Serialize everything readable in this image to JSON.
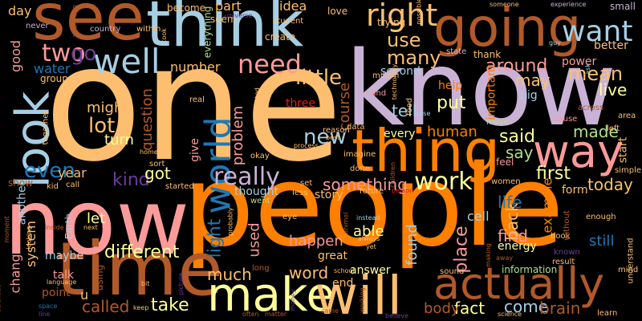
{
  "words": [
    {
      "text": "one",
      "color": "#fdbf6f"
    },
    {
      "text": "know",
      "color": "#cab2d6"
    },
    {
      "text": "people",
      "color": "#ff7f00"
    },
    {
      "text": "now",
      "color": "#fb9a99"
    },
    {
      "text": "see",
      "color": "#b15928"
    },
    {
      "text": "think",
      "color": "#a6cee3"
    },
    {
      "text": "going",
      "color": "#b15928"
    },
    {
      "text": "thing",
      "color": "#ff7f00"
    },
    {
      "text": "time",
      "color": "#b15928"
    },
    {
      "text": "way",
      "color": "#fb9a99"
    },
    {
      "text": "make",
      "color": "#ffff99"
    },
    {
      "text": "will",
      "color": "#fdbf6f"
    },
    {
      "text": "actually",
      "color": "#b15928"
    },
    {
      "text": "look",
      "color": "#a6cee3"
    },
    {
      "text": "want",
      "color": "#a6cee3"
    },
    {
      "text": "well",
      "color": "#a6cee3"
    },
    {
      "text": "right",
      "color": "#fdbf6f"
    },
    {
      "text": "world",
      "color": "#1f78b4"
    },
    {
      "text": "need",
      "color": "#fb9a99"
    },
    {
      "text": "really",
      "color": "#cab2d6"
    },
    {
      "text": "work",
      "color": "#ffff99"
    },
    {
      "text": "two",
      "color": "#fb9a99"
    },
    {
      "text": "go",
      "color": "#6a3d9a"
    },
    {
      "text": "new",
      "color": "#a6cee3"
    },
    {
      "text": "little",
      "color": "#fdbf6f"
    },
    {
      "text": "lot",
      "color": "#fdbf6f"
    },
    {
      "text": "many",
      "color": "#fdbf6f"
    },
    {
      "text": "use",
      "color": "#fdbf6f"
    },
    {
      "text": "mean",
      "color": "#fdbf6f"
    },
    {
      "text": "live",
      "color": "#ffff99"
    },
    {
      "text": "around",
      "color": "#fb9a99"
    },
    {
      "text": "tell",
      "color": "#a6cee3"
    },
    {
      "text": "put",
      "color": "#ffff99"
    },
    {
      "text": "may",
      "color": "#fdbf6f"
    },
    {
      "text": "said",
      "color": "#ffff99"
    },
    {
      "text": "made",
      "color": "#b2df8a"
    },
    {
      "text": "say",
      "color": "#b2df8a"
    },
    {
      "text": "first",
      "color": "#ffff99"
    },
    {
      "text": "today",
      "color": "#fdbf6f"
    },
    {
      "text": "back",
      "color": "#fdbf6f"
    },
    {
      "text": "life",
      "color": "#1f78b4"
    },
    {
      "text": "find",
      "color": "#fb9a99"
    },
    {
      "text": "still",
      "color": "#1f78b4"
    },
    {
      "text": "even",
      "color": "#1f78b4"
    },
    {
      "text": "kind",
      "color": "#6a3d9a"
    },
    {
      "text": "got",
      "color": "#ffff99"
    },
    {
      "text": "something",
      "color": "#fb9a99"
    },
    {
      "text": "different",
      "color": "#ffff99"
    },
    {
      "text": "much",
      "color": "#fdbf6f"
    },
    {
      "text": "word",
      "color": "#fdbf6f"
    },
    {
      "text": "take",
      "color": "#ffff99"
    },
    {
      "text": "called",
      "color": "#b15928"
    },
    {
      "text": "come",
      "color": "#a6cee3"
    },
    {
      "text": "brain",
      "color": "#b15928"
    },
    {
      "text": "fact",
      "color": "#ffff99"
    },
    {
      "text": "body",
      "color": "#b15928"
    },
    {
      "text": "able",
      "color": "#ffff99"
    },
    {
      "text": "place",
      "color": "#fb9a99"
    },
    {
      "text": "found",
      "color": "#a6cee3"
    },
    {
      "text": "happen",
      "color": "#fb9a99"
    },
    {
      "text": "used",
      "color": "#fb9a99"
    },
    {
      "text": "light",
      "color": "#1f78b4"
    },
    {
      "text": "let",
      "color": "#ffff99"
    },
    {
      "text": "might",
      "color": "#fdbf6f"
    },
    {
      "text": "turn",
      "color": "#ffff99"
    },
    {
      "text": "question",
      "color": "#b15928"
    },
    {
      "text": "problem",
      "color": "#fb9a99"
    },
    {
      "text": "course",
      "color": "#b15928"
    },
    {
      "text": "human",
      "color": "#ff7f00"
    },
    {
      "text": "part",
      "color": "#fdbf6f"
    },
    {
      "text": "idea",
      "color": "#fdbf6f"
    },
    {
      "text": "number",
      "color": "#fdbf6f"
    },
    {
      "text": "water",
      "color": "#1f78b4"
    },
    {
      "text": "good",
      "color": "#fb9a99"
    },
    {
      "text": "day",
      "color": "#fdbf6f"
    },
    {
      "text": "year",
      "color": "#fdbf6f"
    },
    {
      "text": "system",
      "color": "#fdbf6f"
    },
    {
      "text": "change",
      "color": "#fb9a99"
    },
    {
      "text": "maybe",
      "color": "#a6cee3"
    },
    {
      "text": "example",
      "color": "#ff7f00"
    },
    {
      "text": "cell",
      "color": "#a6cee3"
    },
    {
      "text": "energy",
      "color": "#ffff99"
    },
    {
      "text": "answer",
      "color": "#ffff99"
    },
    {
      "text": "story",
      "color": "#fdbf6f"
    },
    {
      "text": "thought",
      "color": "#a6cee3"
    },
    {
      "text": "form",
      "color": "#fdbf6f"
    },
    {
      "text": "start",
      "color": "#fdbf6f"
    },
    {
      "text": "help",
      "color": "#ff7f00"
    },
    {
      "text": "important",
      "color": "#ff7f00"
    },
    {
      "text": "big",
      "color": "#a6cee3"
    },
    {
      "text": "second",
      "color": "#a6cee3"
    },
    {
      "text": "power",
      "color": "#fb9a99"
    },
    {
      "text": "better",
      "color": "#fdbf6f"
    },
    {
      "text": "another",
      "color": "#a6cee3"
    },
    {
      "text": "give",
      "color": "#fb9a99"
    },
    {
      "text": "three",
      "color": "#e31a1c"
    },
    {
      "text": "every",
      "color": "#ffff99"
    },
    {
      "text": "u",
      "color": "#fdbf6f"
    },
    {
      "text": "point",
      "color": "#b15928"
    },
    {
      "text": "talk",
      "color": "#fb9a99"
    },
    {
      "text": "great",
      "color": "#fdbf6f"
    },
    {
      "text": "information",
      "color": "#b2df8a"
    },
    {
      "text": "end",
      "color": "#fdbf6f"
    },
    {
      "text": "using",
      "color": "#b15928"
    },
    {
      "text": "Earth",
      "color": "#a6cee3"
    },
    {
      "text": "show",
      "color": "#b15928"
    },
    {
      "text": "become",
      "color": "#fdbf6f"
    },
    {
      "text": "everything",
      "color": "#b2df8a"
    },
    {
      "text": "create",
      "color": "#fdbf6f"
    },
    {
      "text": "love",
      "color": "#fdbf6f"
    },
    {
      "text": "trying",
      "color": "#fdbf6f"
    },
    {
      "text": "thank",
      "color": "#fdbf6f"
    },
    {
      "text": "small",
      "color": "#cab2d6"
    },
    {
      "text": "state",
      "color": "#cab2d6"
    },
    {
      "text": "seem",
      "color": "#fdbf6f"
    },
    {
      "text": "within",
      "color": "#fdbf6f"
    },
    {
      "text": "country",
      "color": "#cab2d6"
    },
    {
      "text": "never",
      "color": "#cab2d6"
    },
    {
      "text": "together",
      "color": "#fdbf6f"
    },
    {
      "text": "group",
      "color": "#fdbf6f"
    },
    {
      "text": "student",
      "color": "#fdbf6f"
    },
    {
      "text": "universe",
      "color": "#6a3d9a"
    },
    {
      "text": "experience",
      "color": "#cab2d6"
    },
    {
      "text": "someone",
      "color": "#fdbf6f"
    },
    {
      "text": "guy",
      "color": "#a6cee3"
    },
    {
      "text": "ask",
      "color": "#a6cee3"
    },
    {
      "text": "across",
      "color": "#b15928"
    },
    {
      "text": "area",
      "color": "#fdbf6f"
    },
    {
      "text": "cause",
      "color": "#fb9a99"
    },
    {
      "text": "left",
      "color": "#fdbf6f"
    },
    {
      "text": "simple",
      "color": "#fdbf6f"
    },
    {
      "text": "hand",
      "color": "#fb9a99"
    },
    {
      "text": "million",
      "color": "#fdbf6f"
    },
    {
      "text": "food",
      "color": "#fdbf6f"
    },
    {
      "text": "move",
      "color": "#b2df8a"
    },
    {
      "text": "reason",
      "color": "#fdbf6f"
    },
    {
      "text": "data",
      "color": "#fdbf6f"
    },
    {
      "text": "okay",
      "color": "#fdbf6f"
    },
    {
      "text": "home",
      "color": "#fdbf6f"
    },
    {
      "text": "sort",
      "color": "#fdbf6f"
    },
    {
      "text": "started",
      "color": "#fdbf6f"
    },
    {
      "text": "call",
      "color": "#fdbf6f"
    },
    {
      "text": "kid",
      "color": "#fdbf6f"
    },
    {
      "text": "set",
      "color": "#fdbf6f"
    },
    {
      "text": "less",
      "color": "#fdbf6f"
    },
    {
      "text": "went",
      "color": "#b2df8a"
    },
    {
      "text": "future",
      "color": "#fdbf6f"
    },
    {
      "text": "person",
      "color": "#e31a1c"
    },
    {
      "text": "imagine",
      "color": "#fdbf6f"
    },
    {
      "text": "done",
      "color": "#fdbf6f"
    },
    {
      "text": "children",
      "color": "#b15928"
    },
    {
      "text": "feel",
      "color": "#fb9a99"
    },
    {
      "text": "women",
      "color": "#fdbf6f"
    },
    {
      "text": "book",
      "color": "#fdbf6f"
    },
    {
      "text": "without",
      "color": "#b15928"
    },
    {
      "text": "enough",
      "color": "#fdbf6f"
    },
    {
      "text": "known",
      "color": "#6a3d9a"
    },
    {
      "text": "result",
      "color": "#fdbf6f"
    },
    {
      "text": "understand",
      "color": "#fdbf6f"
    },
    {
      "text": "mind",
      "color": "#fdbf6f"
    },
    {
      "text": "learn",
      "color": "#fdbf6f"
    },
    {
      "text": "science",
      "color": "#fdbf6f"
    },
    {
      "text": "away",
      "color": "#b15928"
    },
    {
      "text": "came",
      "color": "#b15928"
    },
    {
      "text": "believe",
      "color": "#6a3d9a"
    },
    {
      "text": "sound",
      "color": "#fdbf6f"
    },
    {
      "text": "making",
      "color": "#b15928"
    },
    {
      "text": "always",
      "color": "#fdbf6f"
    },
    {
      "text": "yet",
      "color": "#fdbf6f"
    },
    {
      "text": "instead",
      "color": "#a6cee3"
    },
    {
      "text": "animal",
      "color": "#b15928"
    },
    {
      "text": "eye",
      "color": "#fdbf6f"
    },
    {
      "text": "school",
      "color": "#fdbf6f"
    },
    {
      "text": "working",
      "color": "#b15928"
    },
    {
      "text": "often",
      "color": "#b15928"
    },
    {
      "text": "matter",
      "color": "#b15928"
    },
    {
      "text": "money",
      "color": "#6a3d9a"
    },
    {
      "text": "keep",
      "color": "#fdbf6f"
    },
    {
      "text": "picture",
      "color": "#6a3d9a"
    },
    {
      "text": "language",
      "color": "#fdbf6f"
    },
    {
      "text": "space",
      "color": "#1f78b4"
    },
    {
      "text": "line",
      "color": "#6a3d9a"
    },
    {
      "text": "looking",
      "color": "#fdbf6f"
    },
    {
      "text": "inside",
      "color": "#b15928"
    },
    {
      "text": "next",
      "color": "#fdbf6f"
    },
    {
      "text": "scientist",
      "color": "#b15928"
    },
    {
      "text": "moment",
      "color": "#b15928"
    },
    {
      "text": "long",
      "color": "#b15928"
    },
    {
      "text": "probably",
      "color": "#fdbf6f"
    },
    {
      "text": "real",
      "color": "#fdbf6f"
    },
    {
      "text": "wanted",
      "color": "#fdbf6f"
    },
    {
      "text": "took",
      "color": "#fdbf6f"
    },
    {
      "text": "process",
      "color": "#fdbf6f"
    },
    {
      "text": "best",
      "color": "#fdbf6f"
    },
    {
      "text": "case",
      "color": "#a6cee3"
    },
    {
      "text": "possible",
      "color": "#fdbf6f"
    },
    {
      "text": "technology",
      "color": "#fdbf6f"
    },
    {
      "text": "years ago",
      "color": "#b15928"
    },
    {
      "text": "bit",
      "color": "#fdbf6f"
    }
  ]
}
